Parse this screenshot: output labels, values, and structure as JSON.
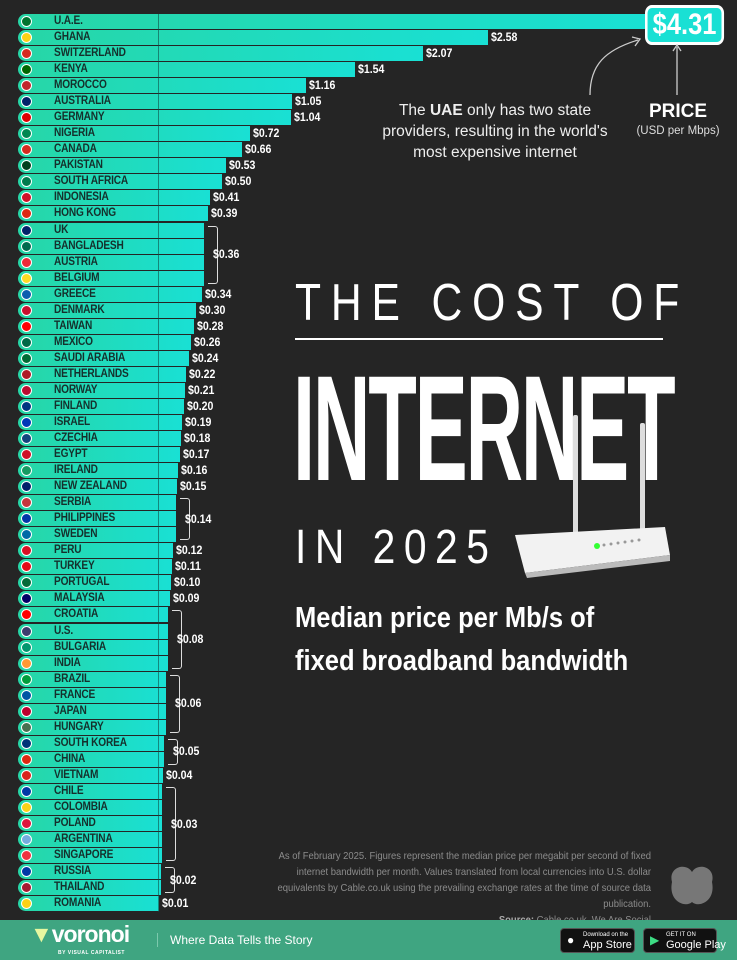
{
  "chart_data": {
    "type": "bar",
    "orientation": "horizontal",
    "title": "THE COST OF INTERNET IN 2025",
    "subtitle": "Median price per Mb/s of fixed broadband bandwidth",
    "unit_label": "PRICE",
    "unit_sublabel": "(USD per Mbps)",
    "categories": [
      "U.A.E.",
      "GHANA",
      "SWITZERLAND",
      "KENYA",
      "MOROCCO",
      "AUSTRALIA",
      "GERMANY",
      "NIGERIA",
      "CANADA",
      "PAKISTAN",
      "SOUTH AFRICA",
      "INDONESIA",
      "HONG KONG",
      "UK",
      "BANGLADESH",
      "AUSTRIA",
      "BELGIUM",
      "GREECE",
      "DENMARK",
      "TAIWAN",
      "MEXICO",
      "SAUDI ARABIA",
      "NETHERLANDS",
      "NORWAY",
      "FINLAND",
      "ISRAEL",
      "CZECHIA",
      "EGYPT",
      "IRELAND",
      "NEW ZEALAND",
      "SERBIA",
      "PHILIPPINES",
      "SWEDEN",
      "PERU",
      "TURKEY",
      "PORTUGAL",
      "MALAYSIA",
      "CROATIA",
      "U.S.",
      "BULGARIA",
      "INDIA",
      "BRAZIL",
      "FRANCE",
      "JAPAN",
      "HUNGARY",
      "SOUTH KOREA",
      "CHINA",
      "VIETNAM",
      "CHILE",
      "COLOMBIA",
      "POLAND",
      "ARGENTINA",
      "SINGAPORE",
      "RUSSIA",
      "THAILAND",
      "ROMANIA"
    ],
    "values": [
      4.31,
      2.58,
      2.07,
      1.54,
      1.16,
      1.05,
      1.04,
      0.72,
      0.66,
      0.53,
      0.5,
      0.41,
      0.39,
      0.36,
      0.36,
      0.36,
      0.36,
      0.34,
      0.3,
      0.28,
      0.26,
      0.24,
      0.22,
      0.21,
      0.2,
      0.19,
      0.18,
      0.17,
      0.16,
      0.15,
      0.14,
      0.14,
      0.14,
      0.12,
      0.11,
      0.1,
      0.09,
      0.08,
      0.08,
      0.08,
      0.08,
      0.06,
      0.06,
      0.06,
      0.06,
      0.05,
      0.05,
      0.04,
      0.03,
      0.03,
      0.03,
      0.03,
      0.03,
      0.02,
      0.02,
      0.01
    ],
    "value_labels": [
      "$4.31",
      "$2.58",
      "$2.07",
      "$1.54",
      "$1.16",
      "$1.05",
      "$1.04",
      "$0.72",
      "$0.66",
      "$0.53",
      "$0.50",
      "$0.41",
      "$0.39",
      "$0.36",
      null,
      null,
      null,
      "$0.34",
      "$0.30",
      "$0.28",
      "$0.26",
      "$0.24",
      "$0.22",
      "$0.21",
      "$0.20",
      "$0.19",
      "$0.18",
      "$0.17",
      "$0.16",
      "$0.15",
      "$0.14",
      null,
      null,
      "$0.12",
      "$0.11",
      "$0.10",
      "$0.09",
      "$0.08",
      null,
      null,
      null,
      "$0.06",
      null,
      null,
      null,
      "$0.05",
      null,
      "$0.04",
      "$0.03",
      null,
      null,
      null,
      null,
      "$0.02",
      null,
      "$0.01"
    ],
    "groups": [
      [
        13,
        16
      ],
      [
        30,
        32
      ],
      [
        37,
        40
      ],
      [
        41,
        44
      ],
      [
        45,
        46
      ],
      [
        48,
        52
      ],
      [
        53,
        54
      ]
    ],
    "flag_colors": [
      "#00732f",
      "#fcd116",
      "#d52b1e",
      "#006600",
      "#c1272d",
      "#012169",
      "#dd0000",
      "#008751",
      "#d52b1e",
      "#01411c",
      "#007a4d",
      "#ce1126",
      "#de2910",
      "#012169",
      "#006a4e",
      "#ed2939",
      "#fdda24",
      "#0d5eaf",
      "#c8102e",
      "#fe0000",
      "#006847",
      "#006c35",
      "#ae1c28",
      "#ba0c2f",
      "#003580",
      "#0038b8",
      "#11457e",
      "#ce1126",
      "#169b62",
      "#012169",
      "#c6363c",
      "#0038a8",
      "#006aa7",
      "#d91023",
      "#e30a17",
      "#046a38",
      "#010066",
      "#ff0000",
      "#3c3b6e",
      "#00966e",
      "#ff9933",
      "#009c3b",
      "#0055a4",
      "#bc002d",
      "#477050",
      "#003478",
      "#de2910",
      "#da251d",
      "#0039a6",
      "#fcd116",
      "#dc143c",
      "#74acdf",
      "#ef3340",
      "#0039a6",
      "#a51931",
      "#fcd116"
    ],
    "grid": false,
    "legend": "none"
  },
  "annotation": {
    "pre": "The ",
    "bold": "UAE",
    "post": " only has two state providers, resulting in the world's most expensive internet"
  },
  "headline": {
    "line1": "THE COST OF",
    "line2": "INTERNET",
    "line3": "IN 2025"
  },
  "subtitle": {
    "line1": "Median price per Mb/s of",
    "line2": "fixed broadband bandwidth"
  },
  "footnote": {
    "text": "As of February 2025. Figures represent the median price per megabit per second of fixed internet bandwidth per month. Values translated from local currencies into U.S. dollar equivalents by Cable.co.uk using the prevailing exchange rates at the time of source data publication.",
    "source_label": "Source:",
    "source": "Cable.co.uk, We Are Social"
  },
  "footer": {
    "brand": "voronoi",
    "brand_sub": "BY VISUAL CAPITALIST",
    "tagline": "Where Data Tells the Story",
    "appstore_small": "Download on the",
    "appstore": "App Store",
    "play_small": "GET IT ON",
    "play": "Google Play"
  },
  "colors": {
    "bar_start": "#27d6a6",
    "bar_end": "#19e0d4",
    "background": "#252525",
    "footer": "#3fa581"
  }
}
